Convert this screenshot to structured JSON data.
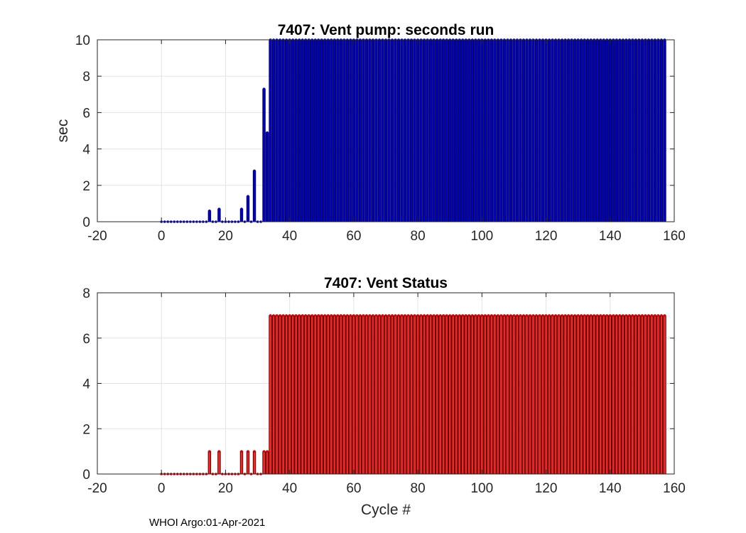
{
  "figure": {
    "footer": "WHOI Argo:01-Apr-2021"
  },
  "chart_data": [
    {
      "type": "bar",
      "title": "7407: Vent pump: seconds run",
      "xlabel": "",
      "ylabel": "sec",
      "xlim": [
        -20,
        160
      ],
      "ylim": [
        0,
        10
      ],
      "xticks": [
        "-20",
        "0",
        "20",
        "40",
        "60",
        "80",
        "100",
        "120",
        "140",
        "160"
      ],
      "yticks": [
        "0",
        "2",
        "4",
        "6",
        "8",
        "10"
      ],
      "grid": true,
      "colors": {
        "fill": "#0000cc",
        "edge": "#000033",
        "marker": "#0000cc"
      },
      "x_range": [
        0,
        157
      ],
      "values": [
        0,
        0,
        0,
        0,
        0,
        0,
        0,
        0,
        0,
        0,
        0,
        0,
        0,
        0,
        0,
        0.6,
        0,
        0,
        0.7,
        0,
        0,
        0,
        0,
        0,
        0,
        0.7,
        0,
        1.4,
        0,
        2.8,
        0,
        0,
        7.3,
        4.9,
        10,
        10,
        10,
        10,
        10,
        10,
        10,
        10,
        10,
        10,
        10,
        10,
        10,
        10,
        10,
        10,
        10,
        10,
        10,
        10,
        10,
        10,
        10,
        10,
        10,
        10,
        10,
        10,
        10,
        10,
        10,
        10,
        10,
        10,
        10,
        10,
        10,
        10,
        10,
        10,
        10,
        10,
        10,
        10,
        10,
        10,
        10,
        10,
        10,
        10,
        10,
        10,
        10,
        10,
        10,
        10,
        10,
        10,
        10,
        10,
        10,
        10,
        10,
        10,
        10,
        10,
        10,
        10,
        10,
        10,
        10,
        10,
        10,
        10,
        10,
        10,
        10,
        10,
        10,
        10,
        10,
        10,
        10,
        10,
        10,
        10,
        10,
        10,
        10,
        10,
        10,
        10,
        10,
        10,
        10,
        10,
        10,
        10,
        10,
        10,
        10,
        10,
        10,
        10,
        10,
        10,
        10,
        10,
        10,
        10,
        10,
        10,
        10,
        10,
        10,
        10,
        10,
        10,
        10,
        10,
        10,
        10,
        10,
        10
      ]
    },
    {
      "type": "bar",
      "title": "7407: Vent Status",
      "xlabel": "Cycle #",
      "ylabel": "",
      "xlim": [
        -20,
        160
      ],
      "ylim": [
        0,
        8
      ],
      "xticks": [
        "-20",
        "0",
        "20",
        "40",
        "60",
        "80",
        "100",
        "120",
        "140",
        "160"
      ],
      "yticks": [
        "0",
        "2",
        "4",
        "6",
        "8"
      ],
      "grid": true,
      "colors": {
        "fill": "#ff2020",
        "edge": "#220000",
        "marker": "#dd0000"
      },
      "x_range": [
        0,
        157
      ],
      "values": [
        0,
        0,
        0,
        0,
        0,
        0,
        0,
        0,
        0,
        0,
        0,
        0,
        0,
        0,
        0,
        1,
        0,
        0,
        1,
        0,
        0,
        0,
        0,
        0,
        0,
        1,
        0,
        1,
        0,
        1,
        0,
        0,
        1,
        1,
        7,
        7,
        7,
        7,
        7,
        7,
        7,
        7,
        7,
        7,
        7,
        7,
        7,
        7,
        7,
        7,
        7,
        7,
        7,
        7,
        7,
        7,
        7,
        7,
        7,
        7,
        7,
        7,
        7,
        7,
        7,
        7,
        7,
        7,
        7,
        7,
        7,
        7,
        7,
        7,
        7,
        7,
        7,
        7,
        7,
        7,
        7,
        7,
        7,
        7,
        7,
        7,
        7,
        7,
        7,
        7,
        7,
        7,
        7,
        7,
        7,
        7,
        7,
        7,
        7,
        7,
        7,
        7,
        7,
        7,
        7,
        7,
        7,
        7,
        7,
        7,
        7,
        7,
        7,
        7,
        7,
        7,
        7,
        7,
        7,
        7,
        7,
        7,
        7,
        7,
        7,
        7,
        7,
        7,
        7,
        7,
        7,
        7,
        7,
        7,
        7,
        7,
        7,
        7,
        7,
        7,
        7,
        7,
        7,
        7,
        7,
        7,
        7,
        7,
        7,
        7,
        7,
        7,
        7,
        7,
        7,
        7,
        7,
        7
      ]
    }
  ]
}
